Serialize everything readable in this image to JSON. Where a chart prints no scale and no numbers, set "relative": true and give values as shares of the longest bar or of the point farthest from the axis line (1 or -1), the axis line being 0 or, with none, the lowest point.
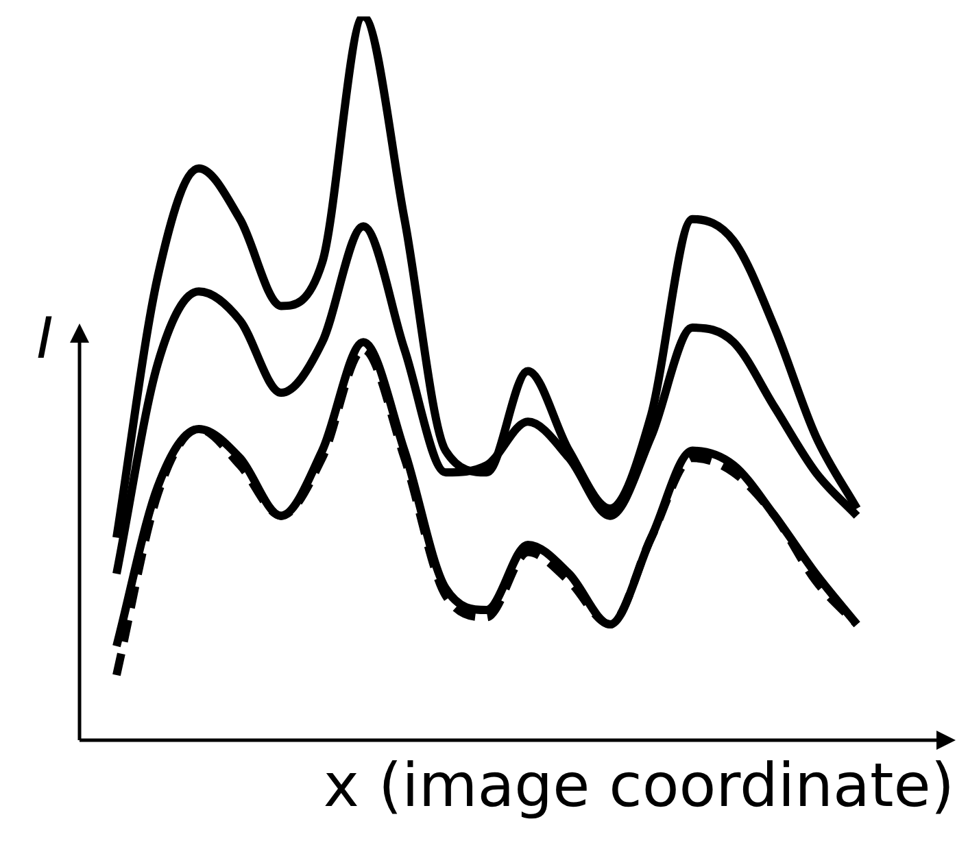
{
  "chart_data": {
    "type": "line",
    "relative": true,
    "xlabel": "x (image coordinate)",
    "ylabel": "I",
    "legend": false,
    "marker": "none",
    "categories": [
      null,
      null,
      null,
      null,
      null,
      null,
      null,
      null,
      null,
      null,
      null,
      null,
      null,
      null,
      null,
      null,
      null,
      null,
      null
    ],
    "series": [
      {
        "color": "#000000",
        "line_style": "solid",
        "values": [
          0.28,
          0.64,
          0.79,
          0.72,
          0.6,
          0.66,
          1,
          0.72,
          0.4,
          0.37,
          0.51,
          0.4,
          0.32,
          0.45,
          0.72,
          0.69,
          0.57,
          0.42,
          0.32
        ]
      },
      {
        "color": "#000000",
        "line_style": "solid",
        "values": [
          0.23,
          0.52,
          0.62,
          0.58,
          0.48,
          0.55,
          0.71,
          0.54,
          0.37,
          0.38,
          0.44,
          0.39,
          0.31,
          0.42,
          0.57,
          0.55,
          0.46,
          0.37,
          0.31
        ]
      },
      {
        "color": "#000000",
        "line_style": "solid",
        "values": [
          0.13,
          0.35,
          0.43,
          0.39,
          0.31,
          0.4,
          0.55,
          0.4,
          0.21,
          0.18,
          0.27,
          0.23,
          0.16,
          0.28,
          0.4,
          0.38,
          0.31,
          0.23,
          0.16
        ]
      },
      {
        "color": "#000000",
        "line_style": "dashed",
        "values": [
          0.09,
          0.34,
          0.43,
          0.38,
          0.31,
          0.39,
          0.54,
          0.39,
          0.2,
          0.17,
          0.26,
          0.22,
          0.16,
          0.28,
          0.39,
          0.37,
          0.31,
          0.22,
          0.16
        ]
      }
    ]
  }
}
